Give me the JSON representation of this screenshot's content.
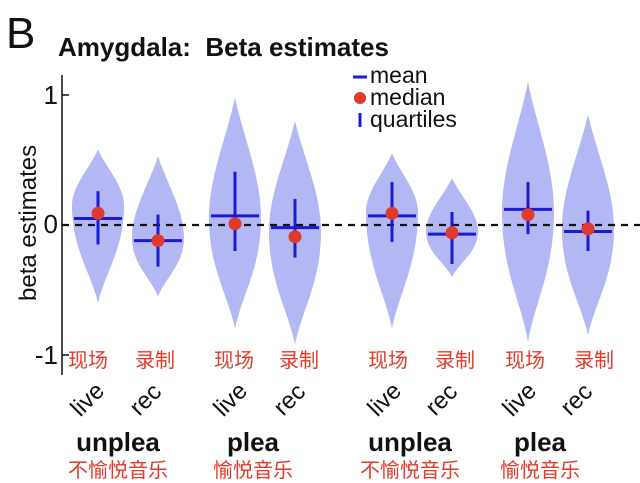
{
  "panel_letter": "B",
  "chart_data": {
    "type": "violin",
    "title": "Amygdala:  Beta estimates",
    "ylabel": "beta estimates",
    "ylim": [
      -1.1,
      1.15
    ],
    "yticks": [
      1,
      0,
      -1
    ],
    "ytick_labels": [
      "1",
      "0",
      "-1"
    ],
    "reference_line": 0,
    "legend": {
      "placement": "top-right",
      "entries": [
        "mean",
        "median",
        "quartiles"
      ]
    },
    "colors": {
      "violin": "#b3b7f3",
      "stat": "#1a1ad4",
      "median": "#e03a2a",
      "chinese_text": "#e03a2a"
    },
    "groups": [
      {
        "name": "unplea",
        "name_cn": "不愉悦音乐",
        "conditions": [
          "live",
          "rec"
        ]
      },
      {
        "name": "plea",
        "name_cn": "愉悦音乐",
        "conditions": [
          "live",
          "rec"
        ]
      },
      {
        "name": "unplea",
        "name_cn": "不愉悦音乐",
        "conditions": [
          "live",
          "rec"
        ]
      },
      {
        "name": "plea",
        "name_cn": "愉悦音乐",
        "conditions": [
          "live",
          "rec"
        ]
      }
    ],
    "condition_labels_cn": {
      "live": "现场",
      "rec": "录制"
    },
    "violins": [
      {
        "cond": "live",
        "min": -0.6,
        "max": 0.58,
        "mean": 0.05,
        "median": 0.09,
        "q1": -0.15,
        "q3": 0.26,
        "mode": 0.15
      },
      {
        "cond": "rec",
        "min": -0.55,
        "max": 0.53,
        "mean": -0.12,
        "median": -0.12,
        "q1": -0.32,
        "q3": 0.08,
        "mode": -0.1
      },
      {
        "cond": "live",
        "min": -0.8,
        "max": 0.98,
        "mean": 0.07,
        "median": 0.01,
        "q1": -0.2,
        "q3": 0.41,
        "mode": 0.05
      },
      {
        "cond": "rec",
        "min": -0.92,
        "max": 0.8,
        "mean": -0.02,
        "median": -0.09,
        "q1": -0.25,
        "q3": 0.2,
        "mode": -0.05
      },
      {
        "cond": "live",
        "min": -0.8,
        "max": 0.55,
        "mean": 0.07,
        "median": 0.09,
        "q1": -0.13,
        "q3": 0.33,
        "mode": 0.1
      },
      {
        "cond": "rec",
        "min": -0.4,
        "max": 0.36,
        "mean": -0.07,
        "median": -0.06,
        "q1": -0.3,
        "q3": 0.1,
        "mode": -0.05
      },
      {
        "cond": "live",
        "min": -0.9,
        "max": 1.1,
        "mean": 0.12,
        "median": 0.08,
        "q1": -0.07,
        "q3": 0.33,
        "mode": 0.1
      },
      {
        "cond": "rec",
        "min": -0.85,
        "max": 0.85,
        "mean": -0.05,
        "median": -0.03,
        "q1": -0.2,
        "q3": 0.11,
        "mode": -0.03
      }
    ]
  }
}
